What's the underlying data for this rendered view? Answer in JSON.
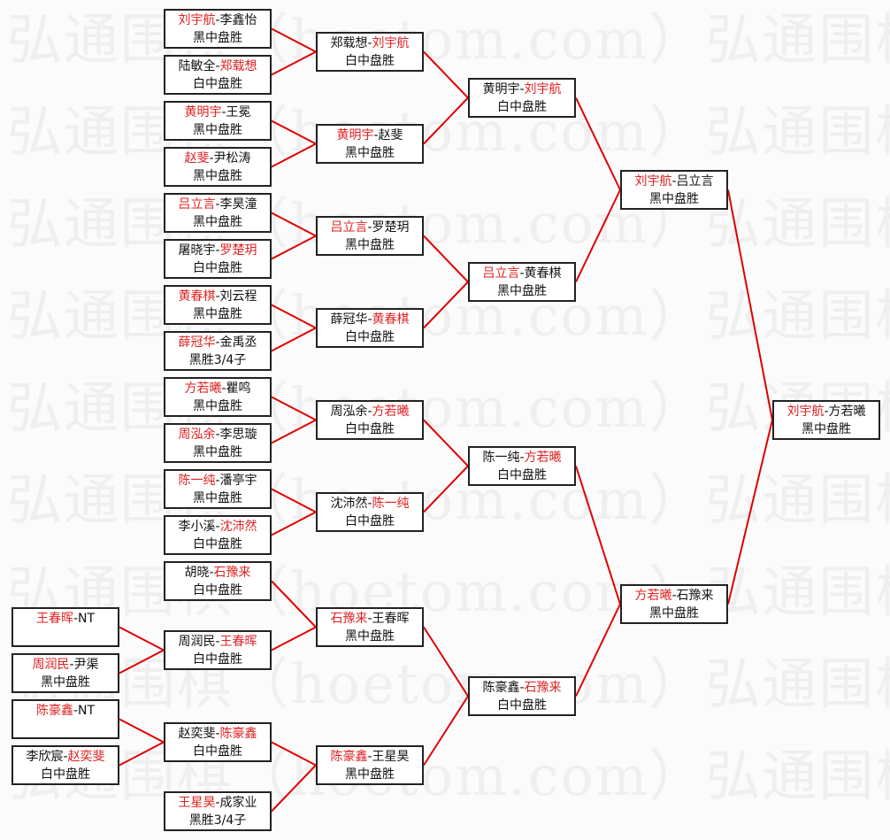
{
  "watermark": "弘通围棋（hoetom.com）弘通围棋（hoetom.com）",
  "colors": {
    "winner": "#e02020",
    "line": "#e00000",
    "border": "#222222"
  },
  "columns": [
    [
      {
        "players": [
          {
            "name": "王春晖",
            "win": true
          },
          {
            "name": "NT",
            "win": false
          }
        ],
        "result": ""
      },
      {
        "players": [
          {
            "name": "周润民",
            "win": true
          },
          {
            "name": "尹渠",
            "win": false
          }
        ],
        "result": "黑中盘胜"
      },
      {
        "players": [
          {
            "name": "陈豪鑫",
            "win": true
          },
          {
            "name": "NT",
            "win": false
          }
        ],
        "result": ""
      },
      {
        "players": [
          {
            "name": "李欣宸",
            "win": false
          },
          {
            "name": "赵奕斐",
            "win": true
          }
        ],
        "result": "白中盘胜"
      }
    ],
    [
      {
        "players": [
          {
            "name": "刘宇航",
            "win": true
          },
          {
            "name": "李鑫怡",
            "win": false
          }
        ],
        "result": "黑中盘胜"
      },
      {
        "players": [
          {
            "name": "陆敏全",
            "win": false
          },
          {
            "name": "郑载想",
            "win": true
          }
        ],
        "result": "白中盘胜"
      },
      {
        "players": [
          {
            "name": "黄明宇",
            "win": true
          },
          {
            "name": "王冕",
            "win": false
          }
        ],
        "result": "黑中盘胜"
      },
      {
        "players": [
          {
            "name": "赵斐",
            "win": true
          },
          {
            "name": "尹松涛",
            "win": false
          }
        ],
        "result": "黑中盘胜"
      },
      {
        "players": [
          {
            "name": "吕立言",
            "win": true
          },
          {
            "name": "李昊潼",
            "win": false
          }
        ],
        "result": "黑中盘胜"
      },
      {
        "players": [
          {
            "name": "屠晓宇",
            "win": false
          },
          {
            "name": "罗楚玥",
            "win": true
          }
        ],
        "result": "白中盘胜"
      },
      {
        "players": [
          {
            "name": "黄春棋",
            "win": true
          },
          {
            "name": "刘云程",
            "win": false
          }
        ],
        "result": "黑中盘胜"
      },
      {
        "players": [
          {
            "name": "薛冠华",
            "win": true
          },
          {
            "name": "金禹丞",
            "win": false
          }
        ],
        "result": "黑胜3/4子"
      },
      {
        "players": [
          {
            "name": "方若曦",
            "win": true
          },
          {
            "name": "瞿鸣",
            "win": false
          }
        ],
        "result": "黑中盘胜"
      },
      {
        "players": [
          {
            "name": "周泓余",
            "win": true
          },
          {
            "name": "李思璇",
            "win": false
          }
        ],
        "result": "黑中盘胜"
      },
      {
        "players": [
          {
            "name": "陈一纯",
            "win": true
          },
          {
            "name": "潘亭宇",
            "win": false
          }
        ],
        "result": "黑中盘胜"
      },
      {
        "players": [
          {
            "name": "李小溪",
            "win": false
          },
          {
            "name": "沈沛然",
            "win": true
          }
        ],
        "result": "白中盘胜"
      },
      {
        "players": [
          {
            "name": "胡晓",
            "win": false
          },
          {
            "name": "石豫来",
            "win": true
          }
        ],
        "result": "白中盘胜"
      },
      {
        "players": [
          {
            "name": "周润民",
            "win": false
          },
          {
            "name": "王春晖",
            "win": true
          }
        ],
        "result": "白中盘胜"
      },
      {
        "players": [
          {
            "name": "赵奕斐",
            "win": false
          },
          {
            "name": "陈豪鑫",
            "win": true
          }
        ],
        "result": "白中盘胜"
      },
      {
        "players": [
          {
            "name": "王星昊",
            "win": true
          },
          {
            "name": "成家业",
            "win": false
          }
        ],
        "result": "黑胜3/4子"
      }
    ],
    [
      {
        "players": [
          {
            "name": "郑载想",
            "win": false
          },
          {
            "name": "刘宇航",
            "win": true
          }
        ],
        "result": "白中盘胜"
      },
      {
        "players": [
          {
            "name": "黄明宇",
            "win": true
          },
          {
            "name": "赵斐",
            "win": false
          }
        ],
        "result": "黑中盘胜"
      },
      {
        "players": [
          {
            "name": "吕立言",
            "win": true
          },
          {
            "name": "罗楚玥",
            "win": false
          }
        ],
        "result": "黑中盘胜"
      },
      {
        "players": [
          {
            "name": "薛冠华",
            "win": false
          },
          {
            "name": "黄春棋",
            "win": true
          }
        ],
        "result": "白中盘胜"
      },
      {
        "players": [
          {
            "name": "周泓余",
            "win": false
          },
          {
            "name": "方若曦",
            "win": true
          }
        ],
        "result": "白中盘胜"
      },
      {
        "players": [
          {
            "name": "沈沛然",
            "win": false
          },
          {
            "name": "陈一纯",
            "win": true
          }
        ],
        "result": "白中盘胜"
      },
      {
        "players": [
          {
            "name": "石豫来",
            "win": true
          },
          {
            "name": "王春晖",
            "win": false
          }
        ],
        "result": "黑中盘胜"
      },
      {
        "players": [
          {
            "name": "陈豪鑫",
            "win": true
          },
          {
            "name": "王星昊",
            "win": false
          }
        ],
        "result": "黑中盘胜"
      }
    ],
    [
      {
        "players": [
          {
            "name": "黄明宇",
            "win": false
          },
          {
            "name": "刘宇航",
            "win": true
          }
        ],
        "result": "白中盘胜"
      },
      {
        "players": [
          {
            "name": "吕立言",
            "win": true
          },
          {
            "name": "黄春棋",
            "win": false
          }
        ],
        "result": "黑中盘胜"
      },
      {
        "players": [
          {
            "name": "陈一纯",
            "win": false
          },
          {
            "name": "方若曦",
            "win": true
          }
        ],
        "result": "白中盘胜"
      },
      {
        "players": [
          {
            "name": "陈豪鑫",
            "win": false
          },
          {
            "name": "石豫来",
            "win": true
          }
        ],
        "result": "白中盘胜"
      }
    ],
    [
      {
        "players": [
          {
            "name": "刘宇航",
            "win": true
          },
          {
            "name": "吕立言",
            "win": false
          }
        ],
        "result": "黑中盘胜"
      },
      {
        "players": [
          {
            "name": "方若曦",
            "win": true
          },
          {
            "name": "石豫来",
            "win": false
          }
        ],
        "result": "黑中盘胜"
      }
    ],
    [
      {
        "players": [
          {
            "name": "刘宇航",
            "win": true
          },
          {
            "name": "方若曦",
            "win": false
          }
        ],
        "result": "黑中盘胜"
      }
    ]
  ]
}
